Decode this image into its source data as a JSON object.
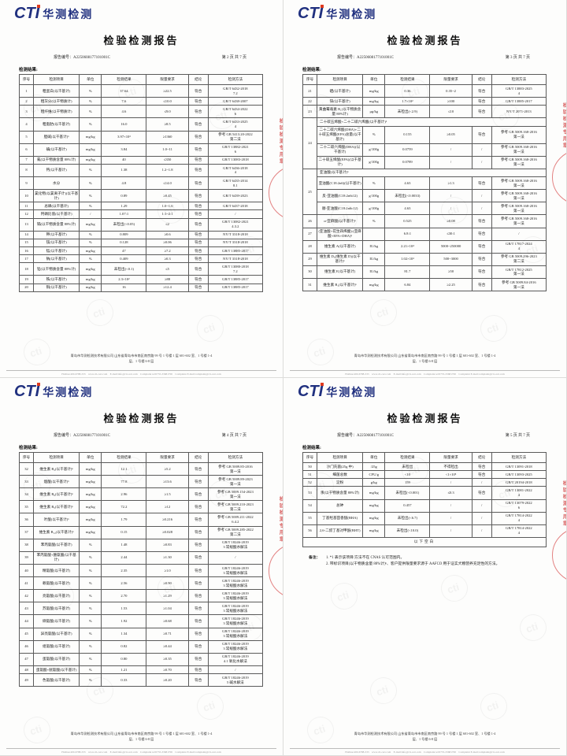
{
  "report": {
    "logo_cti": "CTI",
    "logo_cn": "华测检测",
    "title": "检验检测报告",
    "report_no_label": "报告编号：",
    "report_no": "A2250608177101001C",
    "results_label": "检测结果:",
    "blank_label": "以下空白",
    "columns": [
      "序号",
      "检测项目",
      "单位",
      "检测结果",
      "限量要求",
      "结论",
      "检测方法"
    ],
    "notes_label": "备注：",
    "footer_address_line1": "青岛市华测检测技术有限公司 山东省青岛市市南区南京路 99 号 1 号楼 1 层 601-602 室、1 号楼 1-4",
    "footer_address_line2": "层、1 号楼 6-8 层",
    "contact_line": "Hotline:400-6788-333　www.cti-cert.com　E-mail:info@cti-cert.com　Complaint tel:0755-33681700　Complaint E-mail:complaint@cti-cert.com",
    "accent_navy": "#20307f",
    "accent_red": "#cd1e1e"
  },
  "pages": [
    {
      "page_label": "第 2 页 共 7 页",
      "rows": [
        {
          "no": "1",
          "item": "粗蛋白(以干基计)",
          "unit": "%",
          "result": "37.64",
          "limit": "≥22.5",
          "verdict": "符合",
          "method": "GB/T 6432-2018\n7.2"
        },
        {
          "no": "2",
          "item": "粗灰分(以干物质计)",
          "unit": "%",
          "result": "7.6",
          "limit": "≤10.0",
          "verdict": "符合",
          "method": "GB/T 6438-2007"
        },
        {
          "no": "3",
          "item": "粗纤维(以干物质计)",
          "unit": "%",
          "result": "4.6",
          "limit": "≤9.0",
          "verdict": "符合",
          "method": "GB/T 6434-2022\n6"
        },
        {
          "no": "4",
          "item": "粗脂肪(以干基计)",
          "unit": "%",
          "result": "16.0",
          "limit": "≥8.5",
          "verdict": "符合",
          "method": "GB/T 6433-2025\n4"
        },
        {
          "no": "5",
          "item": "胆碱(以干基计)ᵇ",
          "unit": "mg/kg",
          "result": "3.97×10³",
          "limit": "≥1360",
          "verdict": "符合",
          "method": "参考 GB 5413.20-2022\n第二法"
        },
        {
          "no": "6",
          "item": "碘(以干基计)",
          "unit": "mg/kg",
          "result": "3.84",
          "limit": "1.0~11",
          "verdict": "符合",
          "method": "GB/T 13882-2021\n6"
        },
        {
          "no": "7",
          "item": "氟(以干物质含量 88%计)",
          "unit": "mg/kg",
          "result": "40",
          "limit": "≤350",
          "verdict": "符合",
          "method": "GB/T 13083-2018"
        },
        {
          "no": "8",
          "item": "钙(以干基计)",
          "unit": "%",
          "result": "1.38",
          "limit": "1.2~1.8",
          "verdict": "符合",
          "method": "GB/T 6436-2018\n4"
        },
        {
          "no": "9",
          "item": "水分",
          "unit": "%",
          "result": "4.8",
          "limit": "≤14.0",
          "verdict": "符合",
          "method": "GB/T 6435-2014\n8.1"
        },
        {
          "no": "10",
          "item": "氯化物(以氯离子计)(以干基计)",
          "unit": "%",
          "result": "0.89",
          "limit": "≥0.45",
          "verdict": "符合",
          "method": "GB/T 6439-2023"
        },
        {
          "no": "11",
          "item": "总磷(以干基计)",
          "unit": "%",
          "result": "1.29",
          "limit": "1.0~1.6",
          "verdict": "符合",
          "method": "GB/T 6437-2018"
        },
        {
          "no": "12",
          "item": "钙磷比值(以干基计)",
          "unit": "/",
          "result": "1.07:1",
          "limit": "1:1~2:1",
          "verdict": "符合",
          "method": "/"
        },
        {
          "no": "13",
          "item": "镉(以干物质含量 88%计)",
          "unit": "mg/kg",
          "result": "未检出(<0.05)",
          "limit": "≤2",
          "verdict": "符合",
          "method": "GB/T 13082-2021\n4.3.2"
        },
        {
          "no": "14",
          "item": "钾(以干基计)",
          "unit": "%",
          "result": "0.809",
          "limit": "≥0.6",
          "verdict": "符合",
          "method": "NY/T 3318-2018"
        },
        {
          "no": "15",
          "item": "镁(以干基计)",
          "unit": "%",
          "result": "0.128",
          "limit": "≥0.06",
          "verdict": "符合",
          "method": "NY/T 3318-2018"
        },
        {
          "no": "16",
          "item": "锰(以干基计)",
          "unit": "mg/kg",
          "result": "47",
          "limit": "≥7.2",
          "verdict": "符合",
          "method": "GB/T 13885-2017"
        },
        {
          "no": "17",
          "item": "钠(以干基计)",
          "unit": "%",
          "result": "0.409",
          "limit": "≥0.3",
          "verdict": "符合",
          "method": "NY/T 3318-2018"
        },
        {
          "no": "18",
          "item": "铅(以干物质含量 88%计)",
          "unit": "mg/kg",
          "result": "未检出(<0.1)",
          "limit": "≤5",
          "verdict": "符合",
          "method": "GB/T 13080-2018\n7.2"
        },
        {
          "no": "19",
          "item": "铁(以干基计)",
          "unit": "mg/kg",
          "result": "2.3×10²",
          "limit": "≥88",
          "verdict": "符合",
          "method": "GB/T 13885-2017"
        },
        {
          "no": "20",
          "item": "铜(以干基计)",
          "unit": "mg/kg",
          "result": "16",
          "limit": "≥12.4",
          "verdict": "符合",
          "method": "GB/T 13885-2017"
        }
      ]
    },
    {
      "page_label": "第 3 页 共 7 页",
      "rows": [
        {
          "no": "21",
          "item": "硒(以干基计)",
          "unit": "mg/kg",
          "result": "0.36",
          "limit": "0.35~2",
          "verdict": "符合",
          "method": "GB/T 13883-2025\n4"
        },
        {
          "no": "22",
          "item": "锌(以干基计)",
          "unit": "mg/kg",
          "result": "1.7×10²",
          "limit": "≥100",
          "verdict": "符合",
          "method": "GB/T 13885-2017"
        },
        {
          "no": "23",
          "item": "黄曲霉毒素 B₁(以干物质含量 88%计)",
          "unit": "μg/kg",
          "result": "未检出(<2.9)",
          "limit": "≤10",
          "verdict": "符合",
          "method": "NY/T 2071-2013"
        },
        {
          "type": "group",
          "no": "24",
          "header": "二十碳五烯酸+二十二碳六烯酸(以干基计)ᵇ",
          "subrows": [
            {
              "item": "二十二碳六烯酸(DHA)+二十碳五烯酸(EPA)总量(以干基计)",
              "unit": "%",
              "result": "0.155",
              "limit": "≥0.05",
              "verdict": "符合",
              "method": "参考 GB 5009.168-2016\n第一法"
            },
            {
              "item": "二十二碳六烯酸(DHA)(以干基计)",
              "unit": "g/100g",
              "result": "0.0759",
              "limit": "/",
              "verdict": "/",
              "method": "参考 GB 5009.168-2016\n第一法"
            },
            {
              "item": "二十碳五烯酸(EPA)(以干基计)",
              "unit": "g/100g",
              "result": "0.0789",
              "limit": "/",
              "verdict": "/",
              "method": "参考 GB 5009.168-2016\n第一法"
            }
          ]
        },
        {
          "type": "group",
          "no": "25",
          "header": "亚油酸(以干基计)ᵇ",
          "subrows": [
            {
              "item": "亚油酸(C18:2n6)(以干基计)",
              "unit": "%",
              "result": "4.63",
              "limit": "≥1.3",
              "verdict": "符合",
              "method": "参考 GB 5009.168-2016\n第一法"
            },
            {
              "item": "反-亚油酸(C18:2n6t12)",
              "unit": "g/100g",
              "result": "未检出(<0.0033)",
              "limit": "/",
              "verdict": "/",
              "method": "参考 GB 5009.168-2016\n第一法"
            },
            {
              "item": "顺-亚油酸(C18:2n6c12)",
              "unit": "g/100g",
              "result": "4.63",
              "limit": "/",
              "verdict": "/",
              "method": "参考 GB 5009.168-2016\n第一法"
            }
          ]
        },
        {
          "no": "26",
          "item": "α-亚麻酸(以干基计)ᵇ",
          "unit": "%",
          "result": "0.525",
          "limit": "≥0.08",
          "verdict": "符合",
          "method": "参考 GB 5009.168-2016\n第一法"
        },
        {
          "no": "27",
          "item": "(亚油酸+花生四烯酸):(亚麻酸+EPA+DHA)ᵇ",
          "unit": "",
          "result": "6.8:1",
          "limit": "≤30:1",
          "verdict": "符合",
          "method": "/"
        },
        {
          "no": "28",
          "item": "维生素 A(以干基计)",
          "unit": "IU/kg",
          "result": "2.21×10⁴",
          "limit": "5000~250000",
          "verdict": "符合",
          "method": "GB/T 17817-2024\n4"
        },
        {
          "no": "29",
          "item": "维生素 D₃(维生素 D)(以干基计)ᵇ",
          "unit": "IU/kg",
          "result": "1.02×10³",
          "limit": "500~3000",
          "verdict": "符合",
          "method": "参考 GB 5009.296-2023\n第二法"
        },
        {
          "no": "30",
          "item": "维生素 E(以干基计)",
          "unit": "IU/kg",
          "result": "81.7",
          "limit": "≥50",
          "verdict": "符合",
          "method": "GB/T 17812-2025\n第一法"
        },
        {
          "no": "31",
          "item": "维生素 B₁(以干基计)ᵇ",
          "unit": "mg/kg",
          "result": "6.84",
          "limit": "≥2.25",
          "verdict": "符合",
          "method": "参考 GB 5009.84-2016\n第一法"
        }
      ]
    },
    {
      "page_label": "第 4 页 共 7 页",
      "rows": [
        {
          "no": "32",
          "item": "维生素 B₂(以干基计)ᵇ",
          "unit": "mg/kg",
          "result": "12.1",
          "limit": "≥5.2",
          "verdict": "符合",
          "method": "参考 GB 5009.85-2016\n第一法"
        },
        {
          "no": "33",
          "item": "烟酸(以干基计)ᵇ",
          "unit": "mg/kg",
          "result": "77.8",
          "limit": "≥13.6",
          "verdict": "符合",
          "method": "参考 GB 5009.89-2023\n第一法"
        },
        {
          "no": "34",
          "item": "维生素 B₆(以干基计)ᵇ",
          "unit": "mg/kg",
          "result": "2.96",
          "limit": "≥1.5",
          "verdict": "符合",
          "method": "参考 GB 5009.154-2023\n第一法"
        },
        {
          "no": "35",
          "item": "维生素 B₅(以干基计)ᵇ",
          "unit": "mg/kg",
          "result": "72.2",
          "limit": "≥12",
          "verdict": "符合",
          "method": "参考 GB 5009.210-2023\n第二法"
        },
        {
          "no": "36",
          "item": "叶酸(以干基计)ᵇ",
          "unit": "mg/kg",
          "result": "1.79",
          "limit": "≥0.216",
          "verdict": "符合",
          "method": "参考 GB 5009.211-2022\n6.4.2"
        },
        {
          "no": "37",
          "item": "维生素 B₁₂(以干基计)ᵇ",
          "unit": "mg/kg",
          "result": "0.15",
          "limit": "≥0.028",
          "verdict": "符合",
          "method": "参考 GB 5009.285-2022\n第二法"
        },
        {
          "no": "38",
          "item": "苯丙氨酸(以干基计)",
          "unit": "%",
          "result": "1.48",
          "limit": "≥0.83",
          "verdict": "符合",
          "method": "GB/T 18246-2019\n3 常规酸水解法"
        },
        {
          "no": "39",
          "item": "苯丙氨酸+酪氨酸(以干基计)",
          "unit": "%",
          "result": "2.44",
          "limit": "≥1.30",
          "verdict": "符合",
          "method": "/"
        },
        {
          "no": "40",
          "item": "精氨酸(以干基计)",
          "unit": "%",
          "result": "2.35",
          "limit": "≥1.0",
          "verdict": "符合",
          "method": "GB/T 18246-2019\n3 常规酸水解法"
        },
        {
          "no": "41",
          "item": "赖氨酸(以干基计)",
          "unit": "%",
          "result": "2.56",
          "limit": "≥0.90",
          "verdict": "符合",
          "method": "GB/T 18246-2019\n3 常规酸水解法"
        },
        {
          "no": "42",
          "item": "亮氨酸(以干基计)",
          "unit": "%",
          "result": "2.70",
          "limit": "≥1.29",
          "verdict": "符合",
          "method": "GB/T 18246-2019\n3 常规酸水解法"
        },
        {
          "no": "43",
          "item": "苏氨酸(以干基计)",
          "unit": "%",
          "result": "1.53",
          "limit": "≥1.04",
          "verdict": "符合",
          "method": "GB/T 18246-2019\n3 常规酸水解法"
        },
        {
          "no": "44",
          "item": "缬氨酸(以干基计)",
          "unit": "%",
          "result": "1.92",
          "limit": "≥0.68",
          "verdict": "符合",
          "method": "GB/T 18246-2019\n3 常规酸水解法"
        },
        {
          "no": "45",
          "item": "异亮氨酸(以干基计)",
          "unit": "%",
          "result": "1.34",
          "limit": "≥0.71",
          "verdict": "符合",
          "method": "GB/T 18246-2019\n3 常规酸水解法"
        },
        {
          "no": "46",
          "item": "组氨酸(以干基计)",
          "unit": "%",
          "result": "0.82",
          "limit": "≥0.44",
          "verdict": "符合",
          "method": "GB/T 18246-2019\n3 常规酸水解法"
        },
        {
          "no": "47",
          "item": "蛋氨酸(以干基计)",
          "unit": "%",
          "result": "0.80",
          "limit": "≥0.35",
          "verdict": "符合",
          "method": "GB/T 18246-2019\n4.1 氧化水解法"
        },
        {
          "no": "48",
          "item": "蛋氨酸+胱氨酸(以干基计)",
          "unit": "%",
          "result": "1.21",
          "limit": "≥0.70",
          "verdict": "符合",
          "method": "/"
        },
        {
          "no": "49",
          "item": "色氨酸(以干基计)",
          "unit": "%",
          "result": "0.33",
          "limit": "≥0.20",
          "verdict": "符合",
          "method": "GB/T 18246-2019\n5 碱水解法"
        }
      ]
    },
    {
      "page_label": "第 5 页 共 7 页",
      "rows": [
        {
          "no": "50",
          "item": "沙门氏菌(25g 中)",
          "unit": "/25g",
          "result": "未检出",
          "limit": "不得检出",
          "verdict": "符合",
          "method": "GB/T 13091-2018"
        },
        {
          "no": "51",
          "item": "细菌总数",
          "unit": "CFU/g",
          "result": "<10",
          "limit": "<1×10⁵",
          "verdict": "符合",
          "method": "GB/T 13093-2025"
        },
        {
          "no": "52",
          "item": "淀粉",
          "unit": "g/kg",
          "result": "159",
          "limit": "/",
          "verdict": "/",
          "method": "GB/T 20194-2018"
        },
        {
          "no": "53",
          "item": "汞(以干物质含量 88%计)",
          "unit": "mg/kg",
          "result": "未检出(<0.001)",
          "limit": "≤0.3",
          "verdict": "符合",
          "method": "GB/T 13081-2022\n4"
        },
        {
          "no": "54",
          "item": "总砷",
          "unit": "mg/kg",
          "result": "0.457",
          "limit": "/",
          "verdict": "/",
          "method": "GB/T 13079-2022\n6"
        },
        {
          "no": "55",
          "item": "丁基羟基茴香醚(BHA)",
          "unit": "mg/kg",
          "result": "未检出(<6.7)",
          "limit": "/",
          "verdict": "/",
          "method": "GB/T 17814-2022\n4"
        },
        {
          "no": "56",
          "item": "2,6-二叔丁基对甲酚(BHT)",
          "unit": "mg/kg",
          "result": "未检出(<10.0)",
          "limit": "/",
          "verdict": "/",
          "method": "GB/T 17814-2022\n4"
        },
        {
          "type": "blank"
        }
      ],
      "notes": [
        "1. *1 表示该项目/方法不在 CNAS 认可范围内。",
        "2. 带标识项目(以干物质含量 88%计)ᵇ、客户提供限量要求源于 AAFCO 用于证实犬粮营养充足性的方法。"
      ]
    }
  ]
}
